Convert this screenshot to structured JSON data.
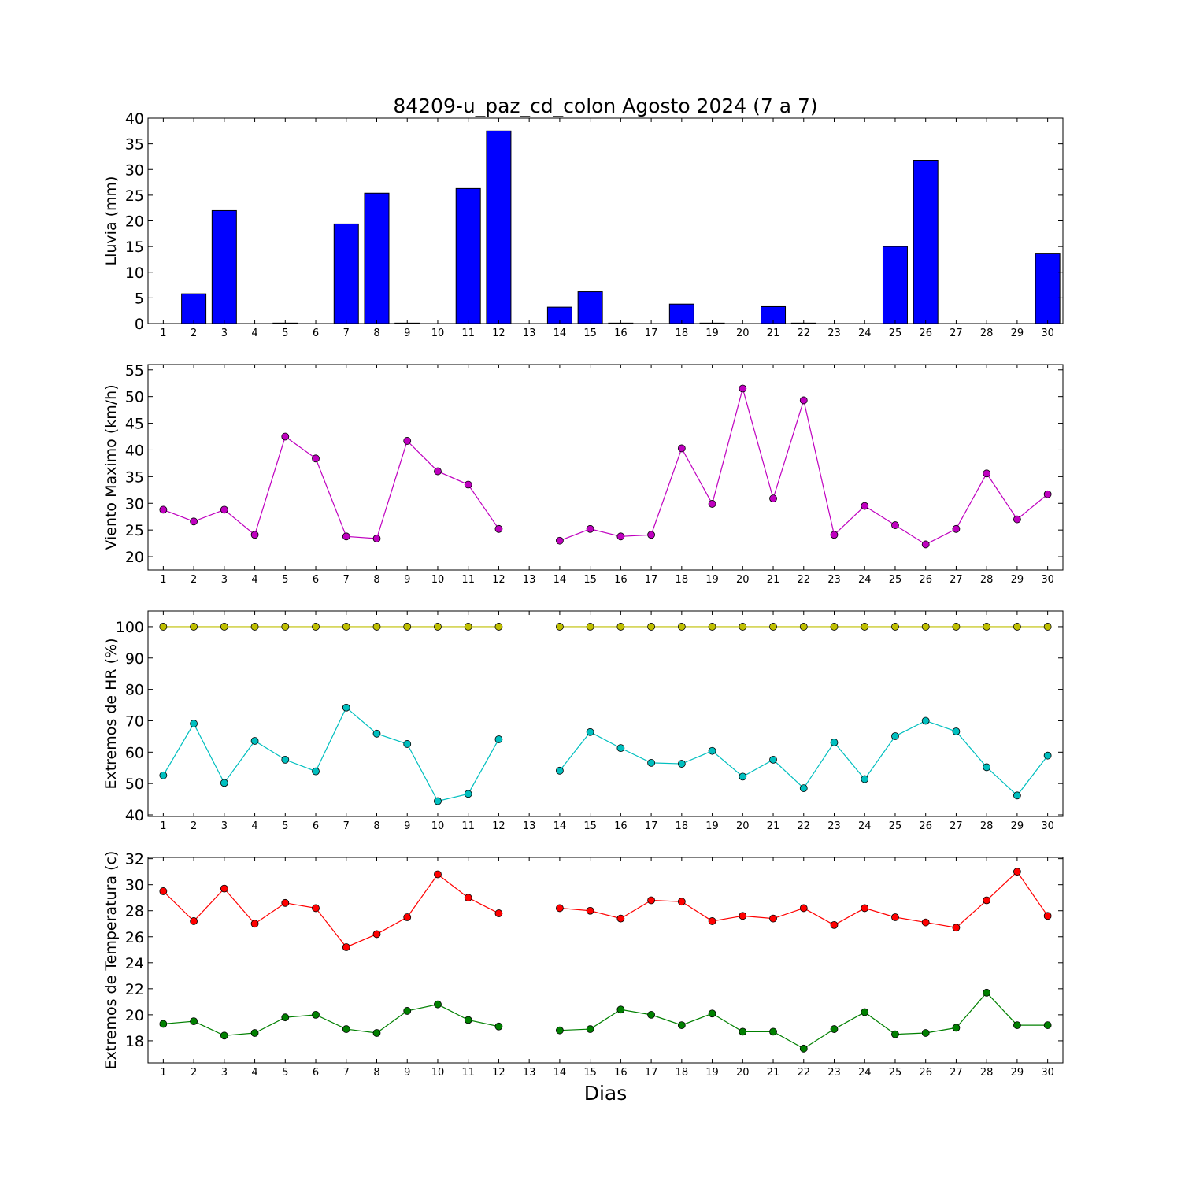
{
  "chart_data": [
    {
      "type": "bar",
      "title": "84209-u_paz_cd_colon Agosto 2024  (7 a 7)",
      "ylabel": "Lluvia (mm)",
      "xlabel": "",
      "ylim": [
        0,
        40
      ],
      "yticks": [
        0,
        5,
        10,
        15,
        20,
        25,
        30,
        35,
        40
      ],
      "x": [
        1,
        2,
        3,
        4,
        5,
        6,
        7,
        8,
        9,
        10,
        11,
        12,
        13,
        14,
        15,
        16,
        17,
        18,
        19,
        20,
        21,
        22,
        23,
        24,
        25,
        26,
        27,
        28,
        29,
        30
      ],
      "series": [
        {
          "color": "#0000ff",
          "values": [
            0,
            5.8,
            22,
            0,
            0.1,
            0,
            19.4,
            25.4,
            0.1,
            0,
            26.3,
            37.5,
            0,
            3.2,
            6.2,
            0.1,
            0,
            3.8,
            0.1,
            0,
            3.3,
            0.1,
            0,
            0,
            15,
            31.8,
            0,
            0,
            0,
            13.7
          ]
        }
      ]
    },
    {
      "type": "line",
      "ylabel": "Viento Maximo (km/h)",
      "ylim": [
        17.5,
        56
      ],
      "yticks": [
        20,
        25,
        30,
        35,
        40,
        45,
        50,
        55
      ],
      "x": [
        1,
        2,
        3,
        4,
        5,
        6,
        7,
        8,
        9,
        10,
        11,
        12,
        13,
        14,
        15,
        16,
        17,
        18,
        19,
        20,
        21,
        22,
        23,
        24,
        25,
        26,
        27,
        28,
        29,
        30
      ],
      "series": [
        {
          "color": "#bf00bf",
          "values": [
            28.8,
            26.6,
            28.8,
            24.1,
            42.5,
            38.4,
            23.8,
            23.4,
            41.7,
            36,
            33.5,
            25.2,
            null,
            23,
            25.2,
            23.8,
            24.1,
            40.3,
            29.9,
            51.5,
            30.9,
            49.3,
            24.1,
            29.5,
            25.9,
            22.3,
            25.2,
            35.6,
            27,
            31.7
          ]
        }
      ]
    },
    {
      "type": "line",
      "ylabel": "Extremos de HR (%)",
      "ylim": [
        39.5,
        105
      ],
      "yticks": [
        40,
        50,
        60,
        70,
        80,
        90,
        100
      ],
      "x": [
        1,
        2,
        3,
        4,
        5,
        6,
        7,
        8,
        9,
        10,
        11,
        12,
        13,
        14,
        15,
        16,
        17,
        18,
        19,
        20,
        21,
        22,
        23,
        24,
        25,
        26,
        27,
        28,
        29,
        30
      ],
      "series": [
        {
          "color": "#bfbf00",
          "values": [
            100,
            100,
            100,
            100,
            100,
            100,
            100,
            100,
            100,
            100,
            100,
            100,
            null,
            100,
            100,
            100,
            100,
            100,
            100,
            100,
            100,
            100,
            100,
            100,
            100,
            100,
            100,
            100,
            100,
            100
          ]
        },
        {
          "color": "#00bfbf",
          "values": [
            52.6,
            69.1,
            50.2,
            63.6,
            57.6,
            53.9,
            74.2,
            65.9,
            62.6,
            44.4,
            46.7,
            64.1,
            null,
            54.1,
            66.4,
            61.3,
            56.6,
            56.3,
            60.4,
            52.2,
            57.6,
            48.5,
            63.1,
            51.4,
            65.1,
            70,
            66.6,
            55.2,
            46.2,
            58.9
          ]
        }
      ]
    },
    {
      "type": "line",
      "ylabel": "Extremos de Temperatura (c)",
      "xlabel": "Dias",
      "ylim": [
        16.3,
        32.1
      ],
      "yticks": [
        18,
        20,
        22,
        24,
        26,
        28,
        30,
        32
      ],
      "x": [
        1,
        2,
        3,
        4,
        5,
        6,
        7,
        8,
        9,
        10,
        11,
        12,
        13,
        14,
        15,
        16,
        17,
        18,
        19,
        20,
        21,
        22,
        23,
        24,
        25,
        26,
        27,
        28,
        29,
        30
      ],
      "series": [
        {
          "color": "#ff0000",
          "values": [
            29.5,
            27.2,
            29.7,
            27,
            28.6,
            28.2,
            25.2,
            26.2,
            27.5,
            30.8,
            29,
            27.8,
            null,
            28.2,
            28,
            27.4,
            28.8,
            28.7,
            27.2,
            27.6,
            27.4,
            28.2,
            26.9,
            28.2,
            27.5,
            27.1,
            26.7,
            28.8,
            31,
            27.6
          ]
        },
        {
          "color": "#008000",
          "values": [
            19.3,
            19.5,
            18.4,
            18.6,
            19.8,
            20,
            18.9,
            18.6,
            20.3,
            20.8,
            19.6,
            19.1,
            null,
            18.8,
            18.9,
            20.4,
            20,
            19.2,
            20.1,
            18.7,
            18.7,
            17.4,
            18.9,
            20.2,
            18.5,
            18.6,
            19,
            21.7,
            19.2,
            19.2
          ]
        }
      ]
    }
  ]
}
